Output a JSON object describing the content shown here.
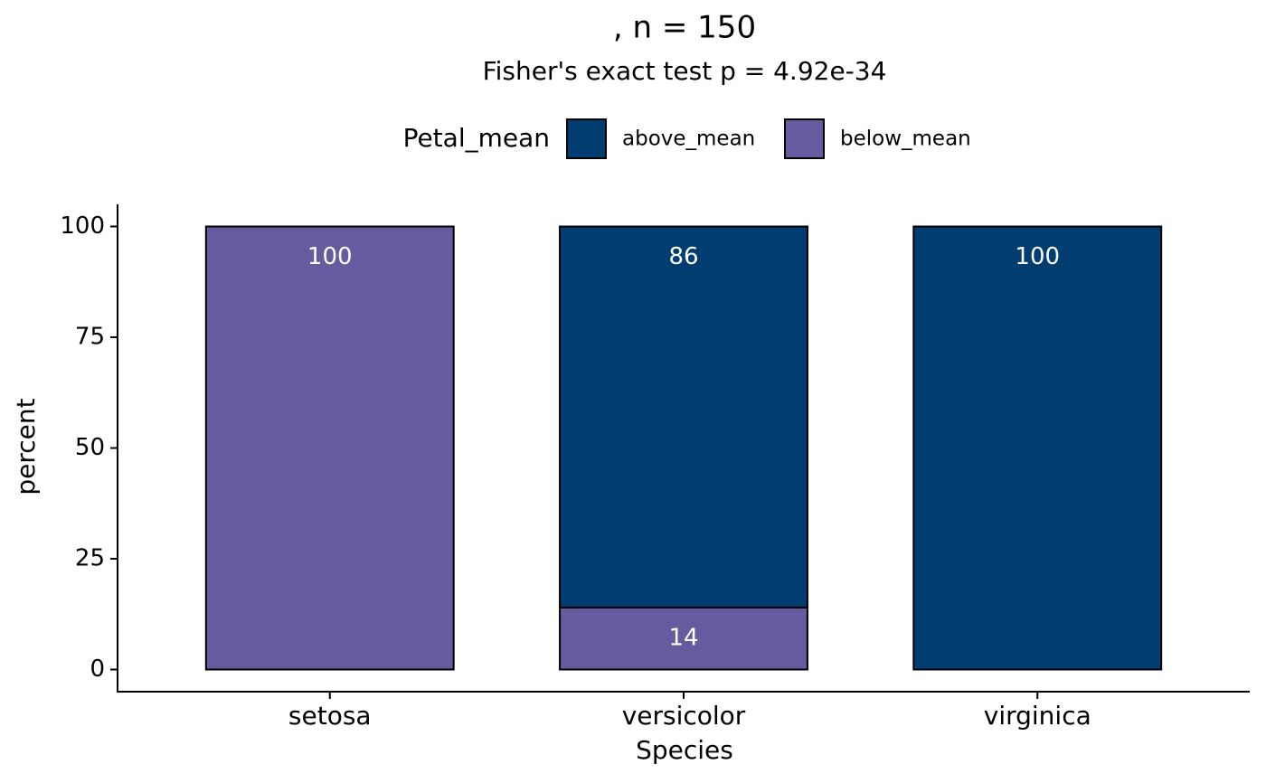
{
  "chart_data": {
    "type": "stacked_bar",
    "title": ", n = 150",
    "subtitle": "Fisher's exact test p = 4.92e-34",
    "x_label": "Species",
    "y_label": "percent",
    "legend_title": "Petal_mean",
    "legend_position": "top",
    "categories": [
      "setosa",
      "versicolor",
      "virginica"
    ],
    "series": [
      {
        "name": "above_mean",
        "color": "#023d71",
        "values": [
          0,
          86,
          100
        ]
      },
      {
        "name": "below_mean",
        "color": "#665b9f",
        "values": [
          100,
          14,
          0
        ]
      }
    ],
    "stack_order": [
      "below_mean",
      "above_mean"
    ],
    "ylim": [
      -5,
      105
    ],
    "yticks": [
      0,
      25,
      50,
      75,
      100
    ],
    "grid": false
  }
}
